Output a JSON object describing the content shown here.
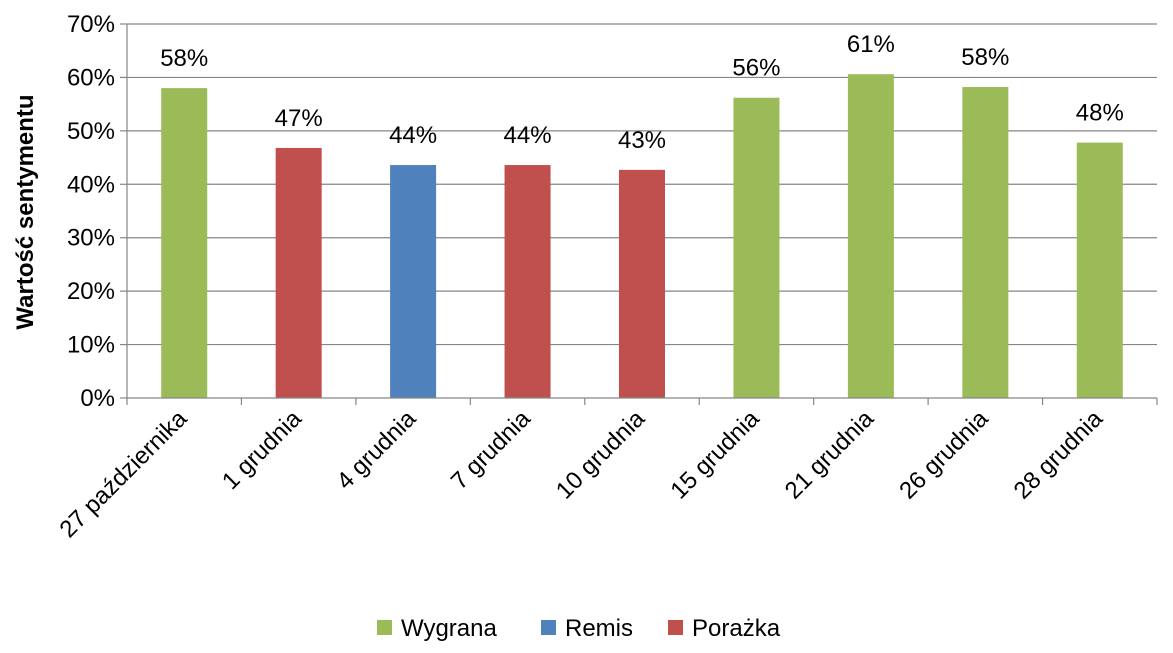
{
  "chart_data": {
    "type": "bar",
    "ylabel": "Wartość sentymentu",
    "xlabel": "",
    "ylim": [
      0,
      70
    ],
    "y_ticks": [
      0,
      10,
      20,
      30,
      40,
      50,
      60,
      70
    ],
    "y_tick_format": "{v}%",
    "grid": true,
    "legend_position": "bottom",
    "categories": [
      "27 października",
      "1 grudnia",
      "4 grudnia",
      "7 grudnia",
      "10 grudnia",
      "15 grudnia",
      "21 grudnia",
      "26 grudnia",
      "28 grudnia"
    ],
    "values": [
      58,
      47,
      44,
      44,
      43,
      56,
      61,
      58,
      48
    ],
    "bar_values": [
      58.0,
      46.8,
      43.6,
      43.6,
      42.7,
      56.2,
      60.6,
      58.2,
      47.8
    ],
    "value_labels": [
      "58%",
      "47%",
      "44%",
      "44%",
      "43%",
      "56%",
      "61%",
      "58%",
      "48%"
    ],
    "outcomes": [
      "Wygrana",
      "Porażka",
      "Remis",
      "Porażka",
      "Porażka",
      "Wygrana",
      "Wygrana",
      "Wygrana",
      "Wygrana"
    ],
    "legend": [
      {
        "label": "Wygrana",
        "color": "#9BBB59"
      },
      {
        "label": "Remis",
        "color": "#4F81BD"
      },
      {
        "label": "Porażka",
        "color": "#C0504D"
      }
    ]
  }
}
